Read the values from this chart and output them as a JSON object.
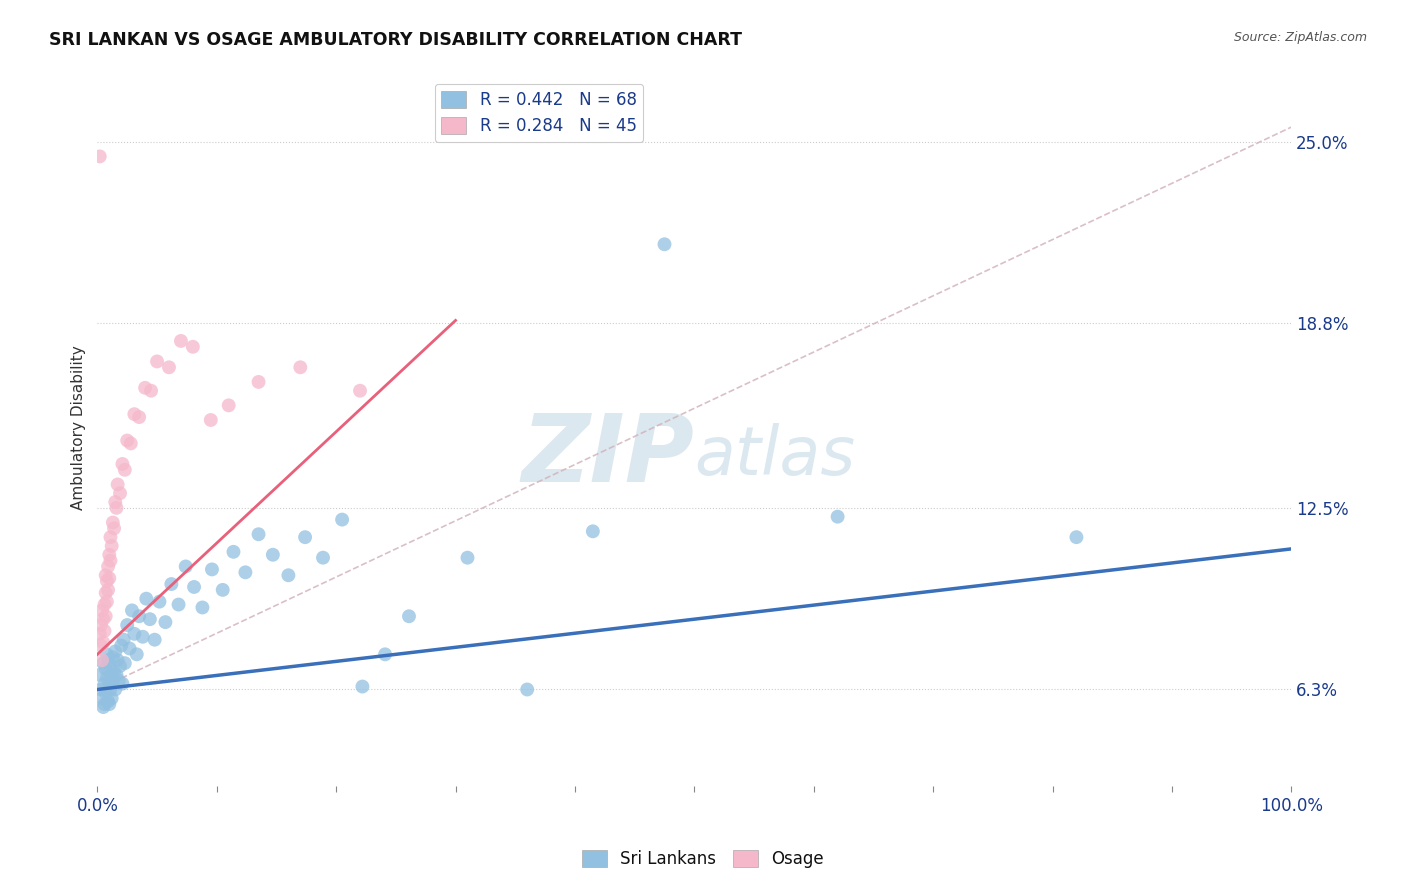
{
  "title": "SRI LANKAN VS OSAGE AMBULATORY DISABILITY CORRELATION CHART",
  "source": "Source: ZipAtlas.com",
  "ylabel": "Ambulatory Disability",
  "xlim": [
    0.0,
    1.0
  ],
  "ylim": [
    0.03,
    0.275
  ],
  "x_ticks": [
    0.0,
    0.1,
    0.2,
    0.3,
    0.4,
    0.5,
    0.6,
    0.7,
    0.8,
    0.9,
    1.0
  ],
  "x_tick_labels": [
    "0.0%",
    "",
    "",
    "",
    "",
    "",
    "",
    "",
    "",
    "",
    "100.0%"
  ],
  "y_tick_vals": [
    0.063,
    0.125,
    0.188,
    0.25
  ],
  "y_tick_labels": [
    "6.3%",
    "12.5%",
    "18.8%",
    "25.0%"
  ],
  "legend_sri": "R = 0.442   N = 68",
  "legend_osage": "R = 0.284   N = 45",
  "sri_color": "#92c0e0",
  "osage_color": "#f5b8cb",
  "sri_line_color": "#3a6fba",
  "osage_line_color": "#e8607a",
  "ref_line_color": "#d0b0b8",
  "watermark_color": "#dce8f0",
  "sri_slope": 0.048,
  "sri_intercept": 0.063,
  "osage_slope": 0.38,
  "osage_intercept": 0.075,
  "osage_line_xmax": 0.3,
  "ref_line_x": [
    0.0,
    1.0
  ],
  "ref_line_y": [
    0.063,
    0.255
  ],
  "sri_x": [
    0.002,
    0.003,
    0.004,
    0.005,
    0.005,
    0.006,
    0.006,
    0.007,
    0.007,
    0.008,
    0.008,
    0.009,
    0.009,
    0.01,
    0.01,
    0.011,
    0.011,
    0.012,
    0.012,
    0.013,
    0.013,
    0.014,
    0.015,
    0.015,
    0.016,
    0.017,
    0.018,
    0.019,
    0.02,
    0.021,
    0.022,
    0.023,
    0.025,
    0.027,
    0.029,
    0.031,
    0.033,
    0.035,
    0.038,
    0.041,
    0.044,
    0.048,
    0.052,
    0.057,
    0.062,
    0.068,
    0.074,
    0.081,
    0.088,
    0.096,
    0.105,
    0.114,
    0.124,
    0.135,
    0.147,
    0.16,
    0.174,
    0.189,
    0.205,
    0.222,
    0.241,
    0.261,
    0.31,
    0.36,
    0.415,
    0.475,
    0.62,
    0.82
  ],
  "sri_y": [
    0.068,
    0.063,
    0.06,
    0.057,
    0.072,
    0.065,
    0.058,
    0.07,
    0.062,
    0.075,
    0.067,
    0.059,
    0.073,
    0.065,
    0.058,
    0.071,
    0.063,
    0.068,
    0.06,
    0.074,
    0.066,
    0.069,
    0.063,
    0.076,
    0.068,
    0.073,
    0.066,
    0.071,
    0.078,
    0.065,
    0.08,
    0.072,
    0.085,
    0.077,
    0.09,
    0.082,
    0.075,
    0.088,
    0.081,
    0.094,
    0.087,
    0.08,
    0.093,
    0.086,
    0.099,
    0.092,
    0.105,
    0.098,
    0.091,
    0.104,
    0.097,
    0.11,
    0.103,
    0.116,
    0.109,
    0.102,
    0.115,
    0.108,
    0.121,
    0.064,
    0.075,
    0.088,
    0.108,
    0.063,
    0.117,
    0.215,
    0.122,
    0.115
  ],
  "osage_x": [
    0.002,
    0.003,
    0.003,
    0.004,
    0.004,
    0.005,
    0.005,
    0.006,
    0.006,
    0.007,
    0.007,
    0.007,
    0.008,
    0.008,
    0.009,
    0.009,
    0.01,
    0.01,
    0.011,
    0.011,
    0.012,
    0.013,
    0.014,
    0.015,
    0.016,
    0.017,
    0.019,
    0.021,
    0.023,
    0.025,
    0.028,
    0.031,
    0.035,
    0.04,
    0.045,
    0.05,
    0.06,
    0.07,
    0.08,
    0.095,
    0.11,
    0.135,
    0.17,
    0.22,
    0.002
  ],
  "osage_y": [
    0.082,
    0.078,
    0.085,
    0.073,
    0.09,
    0.079,
    0.087,
    0.083,
    0.092,
    0.088,
    0.096,
    0.102,
    0.093,
    0.1,
    0.097,
    0.105,
    0.101,
    0.109,
    0.107,
    0.115,
    0.112,
    0.12,
    0.118,
    0.127,
    0.125,
    0.133,
    0.13,
    0.14,
    0.138,
    0.148,
    0.147,
    0.157,
    0.156,
    0.166,
    0.165,
    0.175,
    0.173,
    0.182,
    0.18,
    0.155,
    0.16,
    0.168,
    0.173,
    0.165,
    0.245
  ]
}
